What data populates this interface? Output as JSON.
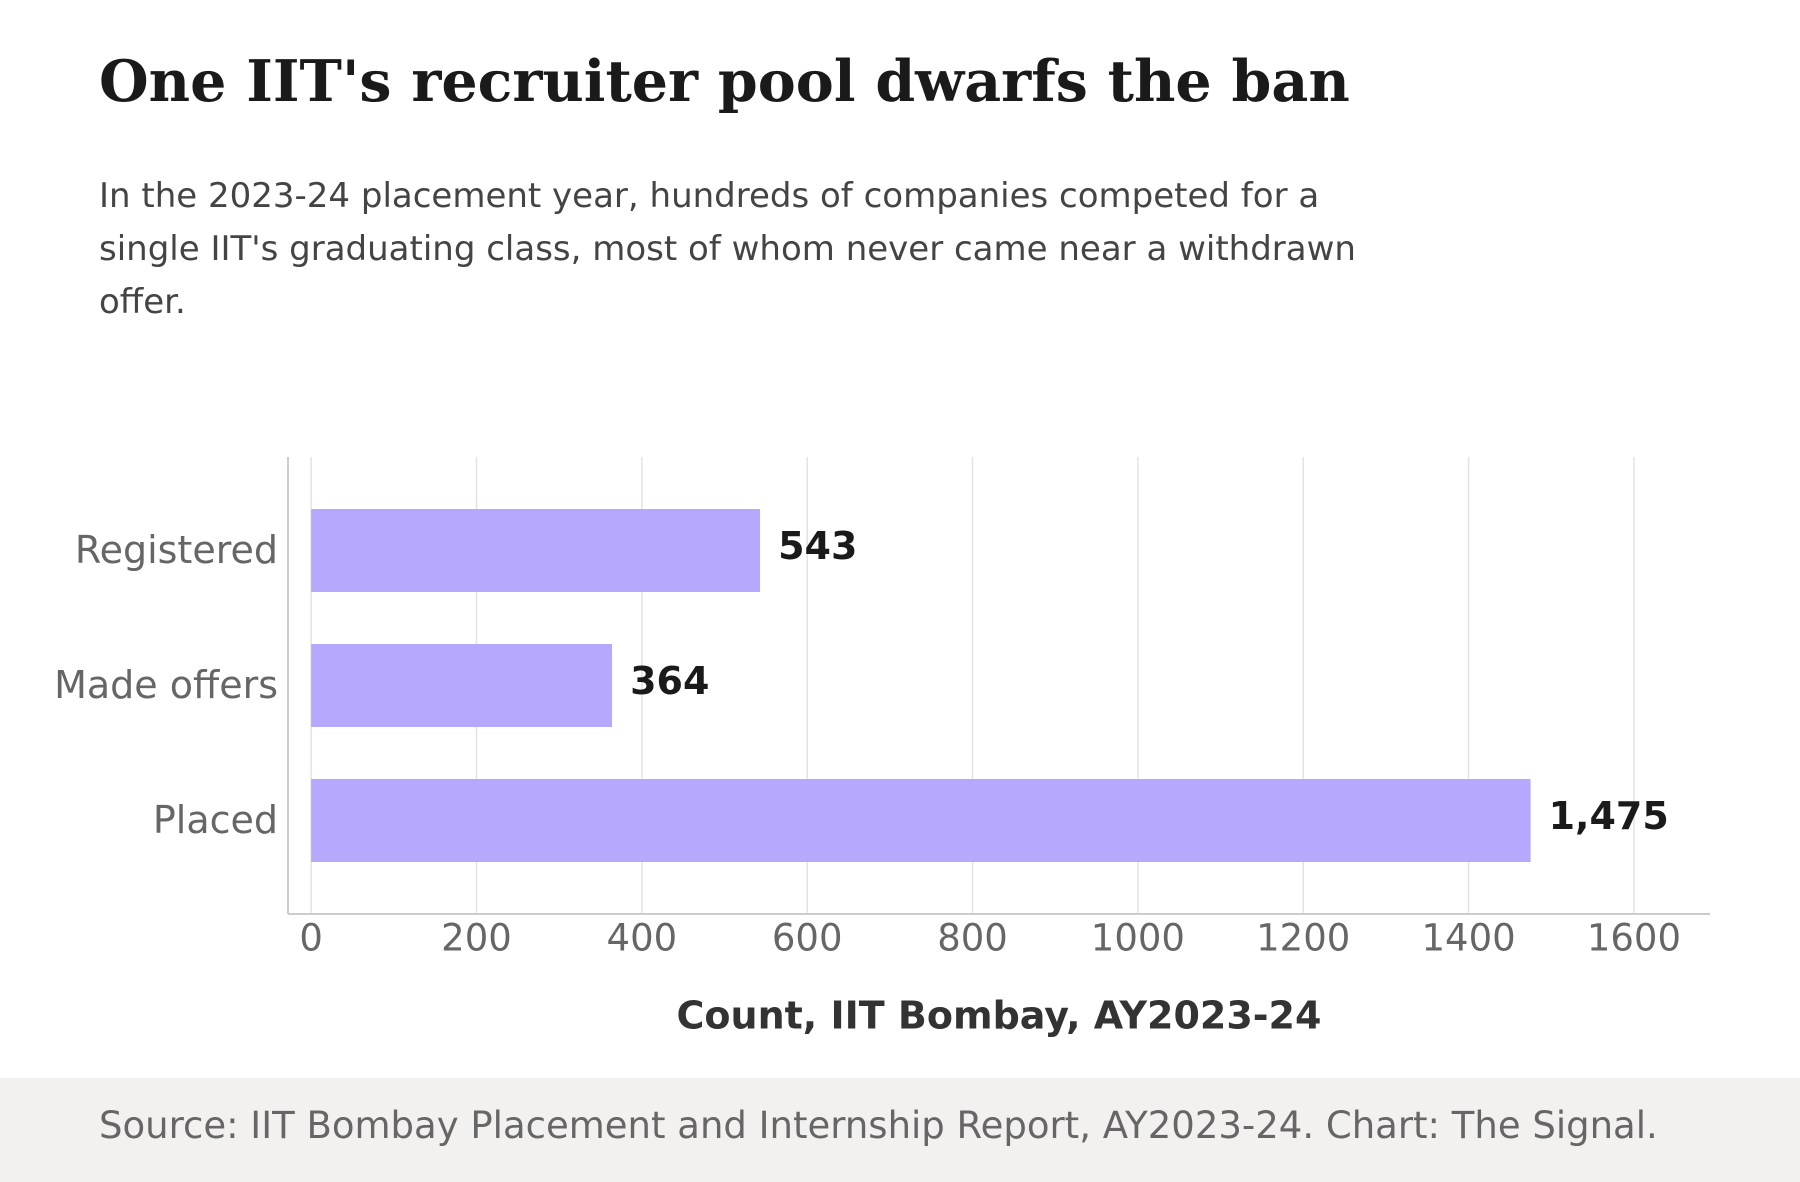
{
  "chart_data": {
    "type": "bar",
    "orientation": "horizontal",
    "title": "One IIT's recruiter pool dwarfs the ban",
    "subtitle": "In the 2023-24 placement year, hundreds of companies competed for a single IIT's graduating class, most of whom never came near a withdrawn offer.",
    "source": "Source: IIT Bombay Placement and Internship Report, AY2023-24. Chart: The Signal.",
    "xlabel": "Count, IIT Bombay, AY2023-24",
    "categories": [
      "Registered",
      "Made offers",
      "Placed"
    ],
    "values": [
      543,
      364,
      1475
    ],
    "value_labels": [
      "543",
      "364",
      "1,475"
    ],
    "color": "#b6a8fd",
    "xlim": [
      -28,
      1692
    ],
    "xticks": [
      0,
      200,
      400,
      600,
      800,
      1000,
      1200,
      1400,
      1600
    ],
    "grid": true
  }
}
